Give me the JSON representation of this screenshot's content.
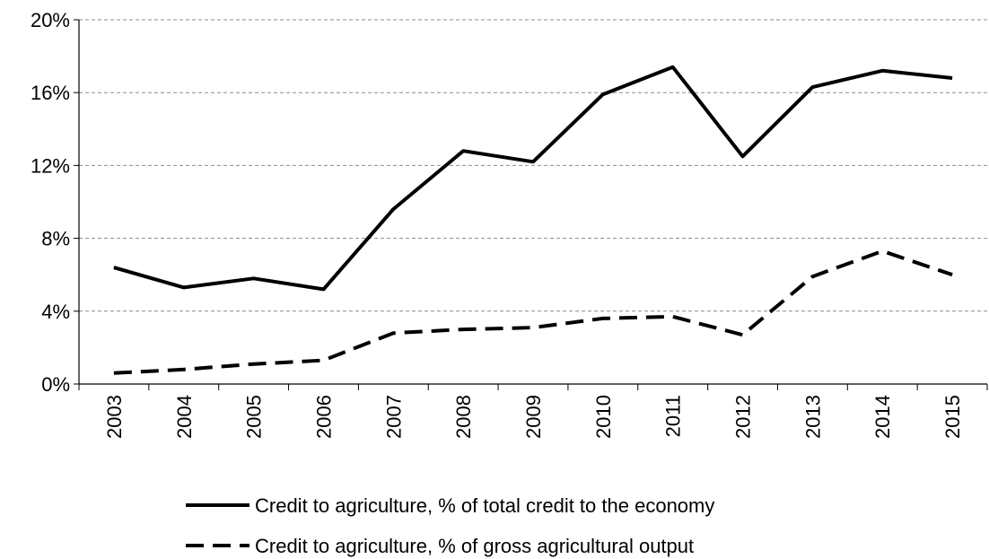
{
  "chart_data": {
    "type": "line",
    "title": "",
    "xlabel": "",
    "ylabel": "",
    "x": [
      "2003",
      "2004",
      "2005",
      "2006",
      "2007",
      "2008",
      "2009",
      "2010",
      "2011",
      "2012",
      "2013",
      "2014",
      "2015"
    ],
    "ylim": [
      0,
      20
    ],
    "y_ticks": [
      0,
      4,
      8,
      12,
      16,
      20
    ],
    "y_tick_labels": [
      "0%",
      "4%",
      "8%",
      "12%",
      "16%",
      "20%"
    ],
    "grid": "horizontal dashed",
    "legend_position": "bottom",
    "series": [
      {
        "name": "Credit to agriculture, % of total credit to the economy",
        "style": "solid",
        "color": "#000000",
        "values": [
          6.4,
          5.3,
          5.8,
          5.2,
          9.6,
          12.8,
          12.2,
          15.9,
          17.4,
          12.5,
          16.3,
          17.2,
          16.8
        ]
      },
      {
        "name": "Credit to agriculture, % of gross agricultural output",
        "style": "dashed",
        "color": "#000000",
        "values": [
          0.6,
          0.8,
          1.1,
          1.3,
          2.8,
          3.0,
          3.1,
          3.6,
          3.7,
          2.7,
          5.9,
          7.3,
          6.0
        ]
      }
    ]
  }
}
